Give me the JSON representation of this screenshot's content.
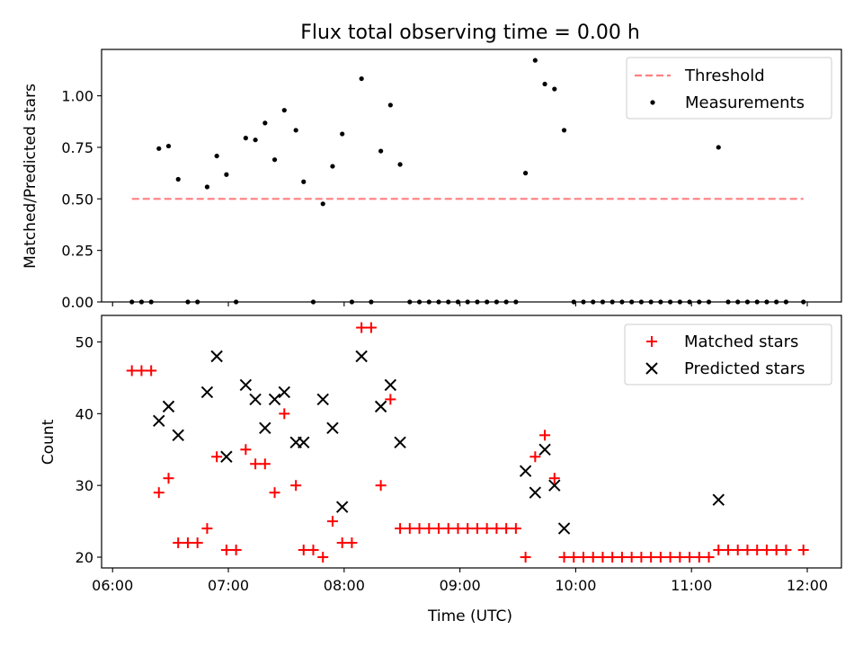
{
  "chart_data": {
    "type": "scatter",
    "title": "Flux total observing time = 0.00 h",
    "xlabel": "Time (UTC)",
    "x_ticks": [
      "06:00",
      "07:00",
      "08:00",
      "09:00",
      "10:00",
      "11:00",
      "12:00"
    ],
    "x_range_hours": [
      5.905,
      12.295
    ],
    "grid": false,
    "panels": [
      {
        "id": "ratio",
        "ylabel": "Matched/Predicted stars",
        "ylim": [
          0.0,
          1.225
        ],
        "y_ticks": [
          "0.00",
          "0.25",
          "0.50",
          "0.75",
          "1.00"
        ],
        "y_tick_values": [
          0.0,
          0.25,
          0.5,
          0.75,
          1.0
        ],
        "legend_position": "top-right",
        "series": [
          {
            "name": "Threshold",
            "kind": "line",
            "style": "dashed",
            "color": "#ff7f7f",
            "points": [
              [
                "06:10",
                0.5
              ],
              [
                "11:58",
                0.5
              ]
            ]
          },
          {
            "name": "Measurements",
            "kind": "scatter",
            "marker": "dot",
            "color": "#000000",
            "points": [
              [
                "06:10",
                0.0
              ],
              [
                "06:15",
                0.0
              ],
              [
                "06:20",
                0.0
              ],
              [
                "06:24",
                0.744
              ],
              [
                "06:29",
                0.756
              ],
              [
                "06:34",
                0.595
              ],
              [
                "06:39",
                0.0
              ],
              [
                "06:44",
                0.0
              ],
              [
                "06:49",
                0.558
              ],
              [
                "06:54",
                0.708
              ],
              [
                "06:59",
                0.618
              ],
              [
                "07:04",
                0.0
              ],
              [
                "07:09",
                0.795
              ],
              [
                "07:14",
                0.786
              ],
              [
                "07:19",
                0.868
              ],
              [
                "07:24",
                0.69
              ],
              [
                "07:29",
                0.93
              ],
              [
                "07:35",
                0.833
              ],
              [
                "07:39",
                0.583
              ],
              [
                "07:44",
                0.0
              ],
              [
                "07:49",
                0.476
              ],
              [
                "07:54",
                0.658
              ],
              [
                "07:59",
                0.815
              ],
              [
                "08:04",
                0.0
              ],
              [
                "08:09",
                1.083
              ],
              [
                "08:14",
                0.0
              ],
              [
                "08:19",
                0.732
              ],
              [
                "08:24",
                0.955
              ],
              [
                "08:29",
                0.667
              ],
              [
                "08:34",
                0.0
              ],
              [
                "08:39",
                0.0
              ],
              [
                "08:44",
                0.0
              ],
              [
                "08:49",
                0.0
              ],
              [
                "08:54",
                0.0
              ],
              [
                "08:59",
                0.0
              ],
              [
                "09:04",
                0.0
              ],
              [
                "09:09",
                0.0
              ],
              [
                "09:14",
                0.0
              ],
              [
                "09:19",
                0.0
              ],
              [
                "09:24",
                0.0
              ],
              [
                "09:29",
                0.0
              ],
              [
                "09:34",
                0.625
              ],
              [
                "09:39",
                1.172
              ],
              [
                "09:44",
                1.057
              ],
              [
                "09:49",
                1.033
              ],
              [
                "09:54",
                0.833
              ],
              [
                "09:59",
                0.0
              ],
              [
                "10:04",
                0.0
              ],
              [
                "10:09",
                0.0
              ],
              [
                "10:14",
                0.0
              ],
              [
                "10:19",
                0.0
              ],
              [
                "10:24",
                0.0
              ],
              [
                "10:29",
                0.0
              ],
              [
                "10:34",
                0.0
              ],
              [
                "10:39",
                0.0
              ],
              [
                "10:44",
                0.0
              ],
              [
                "10:49",
                0.0
              ],
              [
                "10:54",
                0.0
              ],
              [
                "10:59",
                0.0
              ],
              [
                "11:04",
                0.0
              ],
              [
                "11:09",
                0.0
              ],
              [
                "11:14",
                0.75
              ],
              [
                "11:19",
                0.0
              ],
              [
                "11:24",
                0.0
              ],
              [
                "11:29",
                0.0
              ],
              [
                "11:34",
                0.0
              ],
              [
                "11:39",
                0.0
              ],
              [
                "11:44",
                0.0
              ],
              [
                "11:49",
                0.0
              ],
              [
                "11:58",
                0.0
              ]
            ]
          }
        ]
      },
      {
        "id": "count",
        "ylabel": "Count",
        "ylim": [
          18.5,
          53.7
        ],
        "y_ticks": [
          "20",
          "30",
          "40",
          "50"
        ],
        "y_tick_values": [
          20,
          30,
          40,
          50
        ],
        "legend_position": "top-right",
        "series": [
          {
            "name": "Matched stars",
            "kind": "scatter",
            "marker": "plus",
            "color": "#ff0000",
            "points": [
              [
                "06:10",
                46
              ],
              [
                "06:15",
                46
              ],
              [
                "06:20",
                46
              ],
              [
                "06:24",
                29
              ],
              [
                "06:29",
                31
              ],
              [
                "06:34",
                22
              ],
              [
                "06:39",
                22
              ],
              [
                "06:44",
                22
              ],
              [
                "06:49",
                24
              ],
              [
                "06:54",
                34
              ],
              [
                "06:59",
                21
              ],
              [
                "07:04",
                21
              ],
              [
                "07:09",
                35
              ],
              [
                "07:14",
                33
              ],
              [
                "07:19",
                33
              ],
              [
                "07:24",
                29
              ],
              [
                "07:29",
                40
              ],
              [
                "07:35",
                30
              ],
              [
                "07:39",
                21
              ],
              [
                "07:44",
                21
              ],
              [
                "07:49",
                20
              ],
              [
                "07:54",
                25
              ],
              [
                "07:59",
                22
              ],
              [
                "08:04",
                22
              ],
              [
                "08:09",
                52
              ],
              [
                "08:14",
                52
              ],
              [
                "08:19",
                30
              ],
              [
                "08:24",
                42
              ],
              [
                "08:29",
                24
              ],
              [
                "08:34",
                24
              ],
              [
                "08:39",
                24
              ],
              [
                "08:44",
                24
              ],
              [
                "08:49",
                24
              ],
              [
                "08:54",
                24
              ],
              [
                "08:59",
                24
              ],
              [
                "09:04",
                24
              ],
              [
                "09:09",
                24
              ],
              [
                "09:14",
                24
              ],
              [
                "09:19",
                24
              ],
              [
                "09:24",
                24
              ],
              [
                "09:29",
                24
              ],
              [
                "09:34",
                20
              ],
              [
                "09:39",
                34
              ],
              [
                "09:44",
                37
              ],
              [
                "09:49",
                31
              ],
              [
                "09:54",
                20
              ],
              [
                "09:59",
                20
              ],
              [
                "10:04",
                20
              ],
              [
                "10:09",
                20
              ],
              [
                "10:14",
                20
              ],
              [
                "10:19",
                20
              ],
              [
                "10:24",
                20
              ],
              [
                "10:29",
                20
              ],
              [
                "10:34",
                20
              ],
              [
                "10:39",
                20
              ],
              [
                "10:44",
                20
              ],
              [
                "10:49",
                20
              ],
              [
                "10:54",
                20
              ],
              [
                "10:59",
                20
              ],
              [
                "11:04",
                20
              ],
              [
                "11:09",
                20
              ],
              [
                "11:14",
                21
              ],
              [
                "11:19",
                21
              ],
              [
                "11:24",
                21
              ],
              [
                "11:29",
                21
              ],
              [
                "11:34",
                21
              ],
              [
                "11:39",
                21
              ],
              [
                "11:44",
                21
              ],
              [
                "11:49",
                21
              ],
              [
                "11:58",
                21
              ]
            ]
          },
          {
            "name": "Predicted stars",
            "kind": "scatter",
            "marker": "x",
            "color": "#000000",
            "points": [
              [
                "06:24",
                39
              ],
              [
                "06:29",
                41
              ],
              [
                "06:34",
                37
              ],
              [
                "06:49",
                43
              ],
              [
                "06:54",
                48
              ],
              [
                "06:59",
                34
              ],
              [
                "07:09",
                44
              ],
              [
                "07:14",
                42
              ],
              [
                "07:19",
                38
              ],
              [
                "07:24",
                42
              ],
              [
                "07:29",
                43
              ],
              [
                "07:35",
                36
              ],
              [
                "07:39",
                36
              ],
              [
                "07:49",
                42
              ],
              [
                "07:54",
                38
              ],
              [
                "07:59",
                27
              ],
              [
                "08:09",
                48
              ],
              [
                "08:19",
                41
              ],
              [
                "08:24",
                44
              ],
              [
                "08:29",
                36
              ],
              [
                "09:34",
                32
              ],
              [
                "09:39",
                29
              ],
              [
                "09:44",
                35
              ],
              [
                "09:49",
                30
              ],
              [
                "09:54",
                24
              ],
              [
                "11:14",
                28
              ]
            ]
          }
        ]
      }
    ]
  }
}
